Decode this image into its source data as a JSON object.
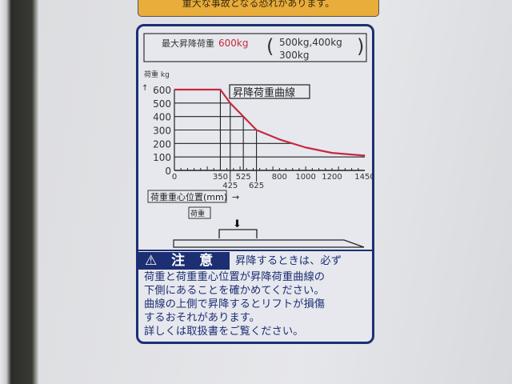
{
  "top_label": {
    "text": "重大な事故となる恐れがあります。"
  },
  "header": {
    "max_label": "最大昇降荷重",
    "max_value": "600kg",
    "variants_line1": "500kg,400kg",
    "variants_line2": "300kg"
  },
  "chart_data": {
    "type": "line",
    "title": "昇降荷重曲線",
    "ylabel": "荷重 kg",
    "xlabel": "荷重重心位置(mm)",
    "xlim": [
      0,
      1450
    ],
    "ylim": [
      0,
      600
    ],
    "yticks": [
      0,
      100,
      200,
      300,
      400,
      500,
      600
    ],
    "xticks_upper": [
      0,
      350,
      525,
      800,
      1000,
      1200,
      1450
    ],
    "xticks_lower": [
      425,
      625
    ],
    "grid": true,
    "series": [
      {
        "x": [
          0,
          350,
          425,
          525,
          625,
          800,
          1000,
          1200,
          1450
        ],
        "y": [
          600,
          600,
          500,
          400,
          300,
          230,
          170,
          130,
          110
        ],
        "color": "#c8283f"
      }
    ]
  },
  "diagram": {
    "load_label": "荷重",
    "arrow": "→"
  },
  "caution": {
    "heading": "注 意",
    "lines": [
      "　　　　　　　　昇降するときは、必ず",
      "荷重と荷重重心位置が昇降荷重曲線の",
      "下側にあることを確かめてください。",
      "曲線の上側で昇降するとリフトが損傷",
      "するおそれがあります。",
      "詳しくは取扱書をご覧ください。"
    ]
  },
  "colors": {
    "navy": "#1d2f73",
    "red": "#c8283f",
    "yellow": "#e8ad3a"
  }
}
